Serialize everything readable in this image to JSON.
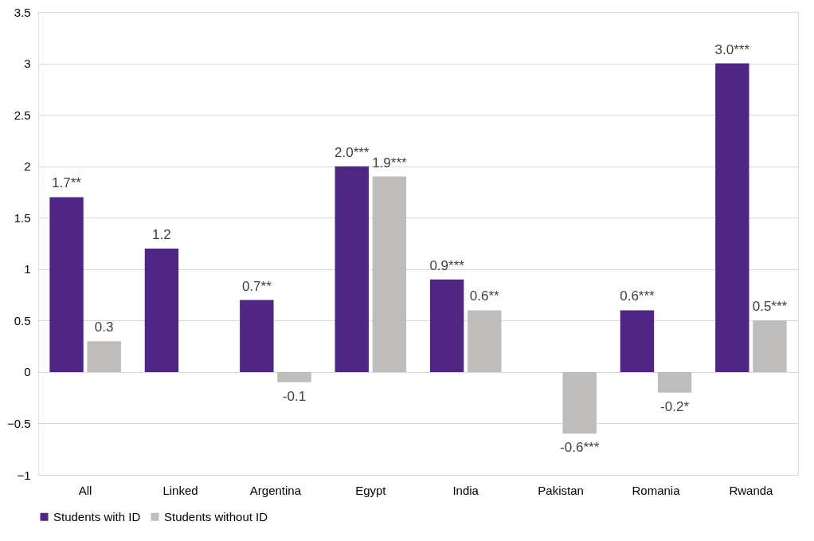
{
  "chart_data": {
    "type": "bar",
    "categories": [
      "All",
      "Linked",
      "Argentina",
      "Egypt",
      "India",
      "Pakistan",
      "Romania",
      "Rwanda"
    ],
    "series": [
      {
        "name": "Students with ID",
        "color": "#4f2683",
        "values": [
          1.7,
          1.2,
          0.7,
          2.0,
          0.9,
          null,
          0.6,
          3.0
        ],
        "value_labels": [
          "1.7**",
          "1.2",
          "0.7**",
          "2.0***",
          "0.9***",
          null,
          "0.6***",
          "3.0***"
        ]
      },
      {
        "name": "Students without ID",
        "color": "#bfbdbb",
        "values": [
          0.3,
          null,
          -0.1,
          1.9,
          0.6,
          -0.6,
          -0.2,
          0.5
        ],
        "value_labels": [
          "0.3",
          null,
          "-0.1",
          "1.9***",
          "0.6**",
          "-0.6***",
          "-0.2*",
          "0.5***"
        ]
      }
    ],
    "ylim": [
      -1,
      3.5
    ],
    "yticks": [
      -1,
      -0.5,
      0,
      0.5,
      1,
      1.5,
      2,
      2.5,
      3,
      3.5
    ],
    "grid": "y",
    "legend": "bottom"
  }
}
